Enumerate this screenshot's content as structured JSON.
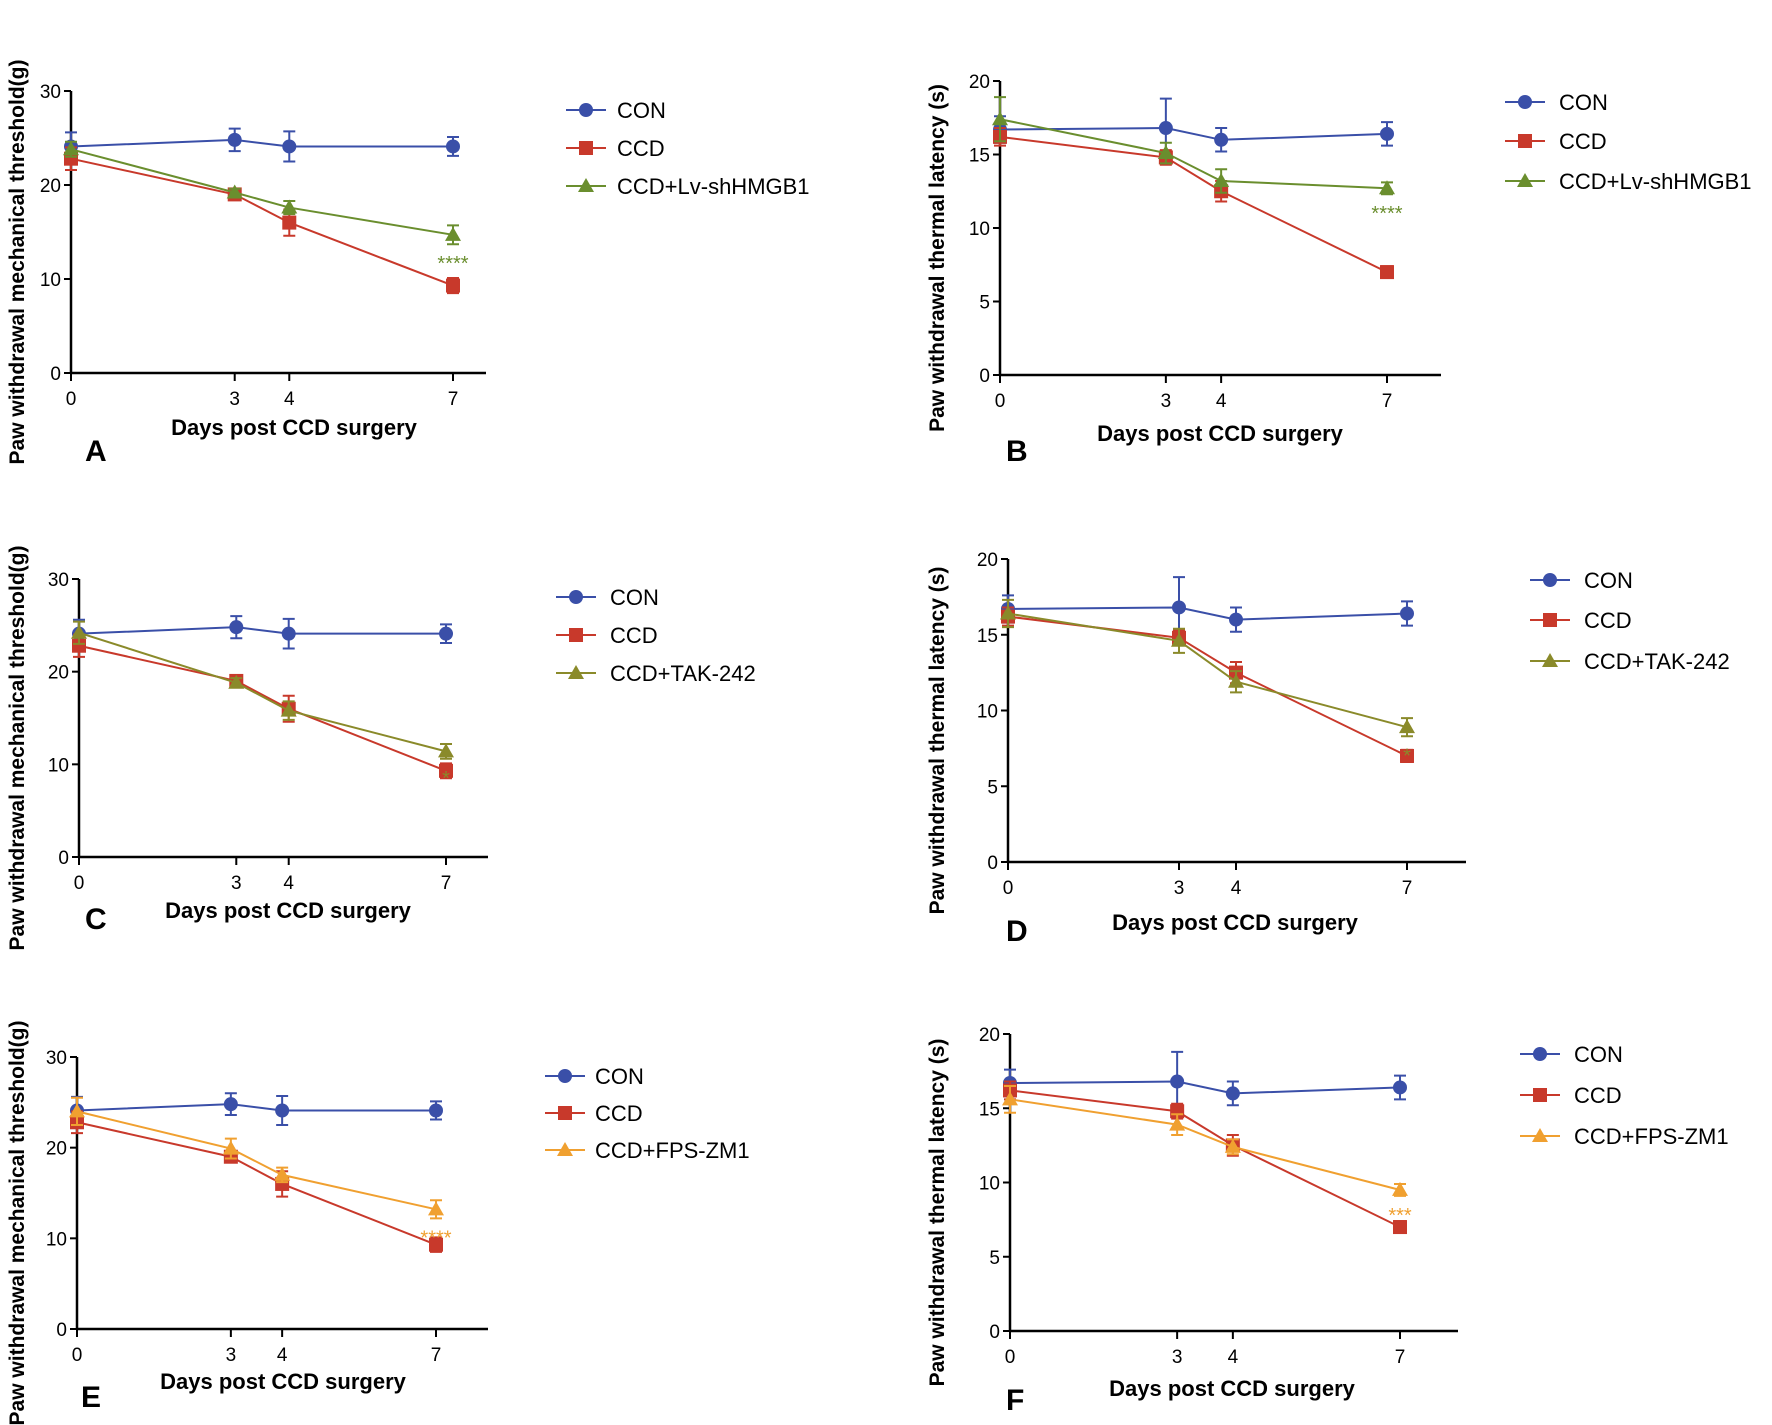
{
  "chart_data": [
    {
      "panel_label": "A",
      "type": "line",
      "xlabel": "Days post CCD surgery",
      "ylabel": "Paw withdrawal mechanical threshold(g)",
      "x": [
        0,
        3,
        4,
        7
      ],
      "xticks": [
        "0",
        "3",
        "4",
        "7"
      ],
      "ylim": [
        0,
        30
      ],
      "yticks": [
        "0",
        "10",
        "20",
        "30"
      ],
      "legend": "right",
      "series": [
        {
          "name": "CON",
          "color": "#3a4fa8",
          "marker": "circle",
          "values": [
            24.1,
            24.8,
            24.1,
            24.1
          ],
          "errors": [
            1.5,
            1.2,
            1.6,
            1.0
          ]
        },
        {
          "name": "CCD",
          "color": "#c8392b",
          "marker": "square",
          "values": [
            22.8,
            19.0,
            16.0,
            9.3
          ],
          "errors": [
            1.2,
            0.4,
            1.4,
            0.8
          ]
        },
        {
          "name": "CCD+Lv-shHMGB1",
          "color": "#6a8e2e",
          "marker": "triangle",
          "values": [
            23.8,
            19.2,
            17.6,
            14.7
          ],
          "errors": [
            0.8,
            0.4,
            0.7,
            1.0
          ]
        }
      ],
      "annotation": {
        "text": "****",
        "x": 7,
        "color": "#6a8e2e"
      }
    },
    {
      "panel_label": "B",
      "type": "line",
      "xlabel": "Days post CCD surgery",
      "ylabel": "Paw withdrawal thermal latency  (s)",
      "x": [
        0,
        3,
        4,
        7
      ],
      "xticks": [
        "0",
        "3",
        "4",
        "7"
      ],
      "ylim": [
        0,
        20
      ],
      "yticks": [
        "0",
        "5",
        "10",
        "15",
        "20"
      ],
      "legend": "right",
      "series": [
        {
          "name": "CON",
          "color": "#3a4fa8",
          "marker": "circle",
          "values": [
            16.7,
            16.8,
            16.0,
            16.4
          ],
          "errors": [
            0.9,
            2.0,
            0.8,
            0.8
          ]
        },
        {
          "name": "CCD",
          "color": "#c8392b",
          "marker": "square",
          "values": [
            16.2,
            14.8,
            12.5,
            7.0
          ],
          "errors": [
            0.6,
            0.5,
            0.7,
            0.4
          ]
        },
        {
          "name": "CCD+Lv-shHMGB1",
          "color": "#6a8e2e",
          "marker": "triangle",
          "values": [
            17.4,
            15.1,
            13.2,
            12.7
          ],
          "errors": [
            1.5,
            0.7,
            0.8,
            0.4
          ]
        }
      ],
      "annotation": {
        "text": "****",
        "x": 7,
        "color": "#6a8e2e"
      }
    },
    {
      "panel_label": "C",
      "type": "line",
      "xlabel": "Days post CCD surgery",
      "ylabel": "Paw withdrawal mechanical threshold(g)",
      "x": [
        0,
        3,
        4,
        7
      ],
      "xticks": [
        "0",
        "3",
        "4",
        "7"
      ],
      "ylim": [
        0,
        30
      ],
      "yticks": [
        "0",
        "10",
        "20",
        "30"
      ],
      "legend": "right",
      "series": [
        {
          "name": "CON",
          "color": "#3a4fa8",
          "marker": "circle",
          "values": [
            24.1,
            24.8,
            24.1,
            24.1
          ],
          "errors": [
            1.5,
            1.2,
            1.6,
            1.0
          ]
        },
        {
          "name": "CCD",
          "color": "#c8392b",
          "marker": "square",
          "values": [
            22.8,
            19.0,
            16.0,
            9.3
          ],
          "errors": [
            1.2,
            0.4,
            1.4,
            0.8
          ]
        },
        {
          "name": "CCD+TAK-242",
          "color": "#8a8a2a",
          "marker": "triangle",
          "values": [
            24.2,
            18.8,
            15.8,
            11.4
          ],
          "errors": [
            1.2,
            0.5,
            1.0,
            0.8
          ]
        }
      ],
      "annotation": {
        "text": "*",
        "x": 7,
        "color": "#8a8a2a"
      }
    },
    {
      "panel_label": "D",
      "type": "line",
      "xlabel": "Days post CCD surgery",
      "ylabel": "Paw withdrawal thermal latency  (s)",
      "x": [
        0,
        3,
        4,
        7
      ],
      "xticks": [
        "0",
        "3",
        "4",
        "7"
      ],
      "ylim": [
        0,
        20
      ],
      "yticks": [
        "0",
        "5",
        "10",
        "15",
        "20"
      ],
      "legend": "right",
      "series": [
        {
          "name": "CON",
          "color": "#3a4fa8",
          "marker": "circle",
          "values": [
            16.7,
            16.8,
            16.0,
            16.4
          ],
          "errors": [
            0.9,
            2.0,
            0.8,
            0.8
          ]
        },
        {
          "name": "CCD",
          "color": "#c8392b",
          "marker": "square",
          "values": [
            16.2,
            14.8,
            12.5,
            7.0
          ],
          "errors": [
            0.6,
            0.5,
            0.7,
            0.4
          ]
        },
        {
          "name": "CCD+TAK-242",
          "color": "#8a8a2a",
          "marker": "triangle",
          "values": [
            16.4,
            14.6,
            11.9,
            8.9
          ],
          "errors": [
            0.9,
            0.8,
            0.7,
            0.6
          ]
        }
      ],
      "annotation": {
        "text": "*",
        "x": 7,
        "color": "#8a8a2a"
      }
    },
    {
      "panel_label": "E",
      "type": "line",
      "xlabel": "Days post CCD surgery",
      "ylabel": "Paw withdrawal mechanical threshold(g)",
      "x": [
        0,
        3,
        4,
        7
      ],
      "xticks": [
        "0",
        "3",
        "4",
        "7"
      ],
      "ylim": [
        0,
        30
      ],
      "yticks": [
        "0",
        "10",
        "20",
        "30"
      ],
      "legend": "right",
      "series": [
        {
          "name": "CON",
          "color": "#3a4fa8",
          "marker": "circle",
          "values": [
            24.1,
            24.8,
            24.1,
            24.1
          ],
          "errors": [
            1.5,
            1.2,
            1.6,
            1.0
          ]
        },
        {
          "name": "CCD",
          "color": "#c8392b",
          "marker": "square",
          "values": [
            22.8,
            19.0,
            16.0,
            9.3
          ],
          "errors": [
            1.2,
            0.4,
            1.4,
            0.8
          ]
        },
        {
          "name": "CCD+FPS-ZM1",
          "color": "#f0a030",
          "marker": "triangle",
          "values": [
            24.0,
            19.9,
            17.0,
            13.2
          ],
          "errors": [
            1.5,
            1.1,
            0.8,
            1.0
          ]
        }
      ],
      "annotation": {
        "text": "****",
        "x": 7,
        "color": "#f0a030"
      }
    },
    {
      "panel_label": "F",
      "type": "line",
      "xlabel": "Days post CCD surgery",
      "ylabel": "Paw withdrawal thermal latency  (s)",
      "x": [
        0,
        3,
        4,
        7
      ],
      "xticks": [
        "0",
        "3",
        "4",
        "7"
      ],
      "ylim": [
        0,
        20
      ],
      "yticks": [
        "0",
        "5",
        "10",
        "15",
        "20"
      ],
      "legend": "right",
      "series": [
        {
          "name": "CON",
          "color": "#3a4fa8",
          "marker": "circle",
          "values": [
            16.7,
            16.8,
            16.0,
            16.4
          ],
          "errors": [
            0.9,
            2.0,
            0.8,
            0.8
          ]
        },
        {
          "name": "CCD",
          "color": "#c8392b",
          "marker": "square",
          "values": [
            16.2,
            14.8,
            12.5,
            7.0
          ],
          "errors": [
            0.6,
            0.5,
            0.7,
            0.4
          ]
        },
        {
          "name": "CCD+FPS-ZM1",
          "color": "#f0a030",
          "marker": "triangle",
          "values": [
            15.6,
            13.9,
            12.4,
            9.5
          ],
          "errors": [
            0.9,
            0.7,
            0.5,
            0.4
          ]
        }
      ],
      "annotation": {
        "text": "***",
        "x": 7,
        "color": "#f0a030"
      }
    }
  ]
}
